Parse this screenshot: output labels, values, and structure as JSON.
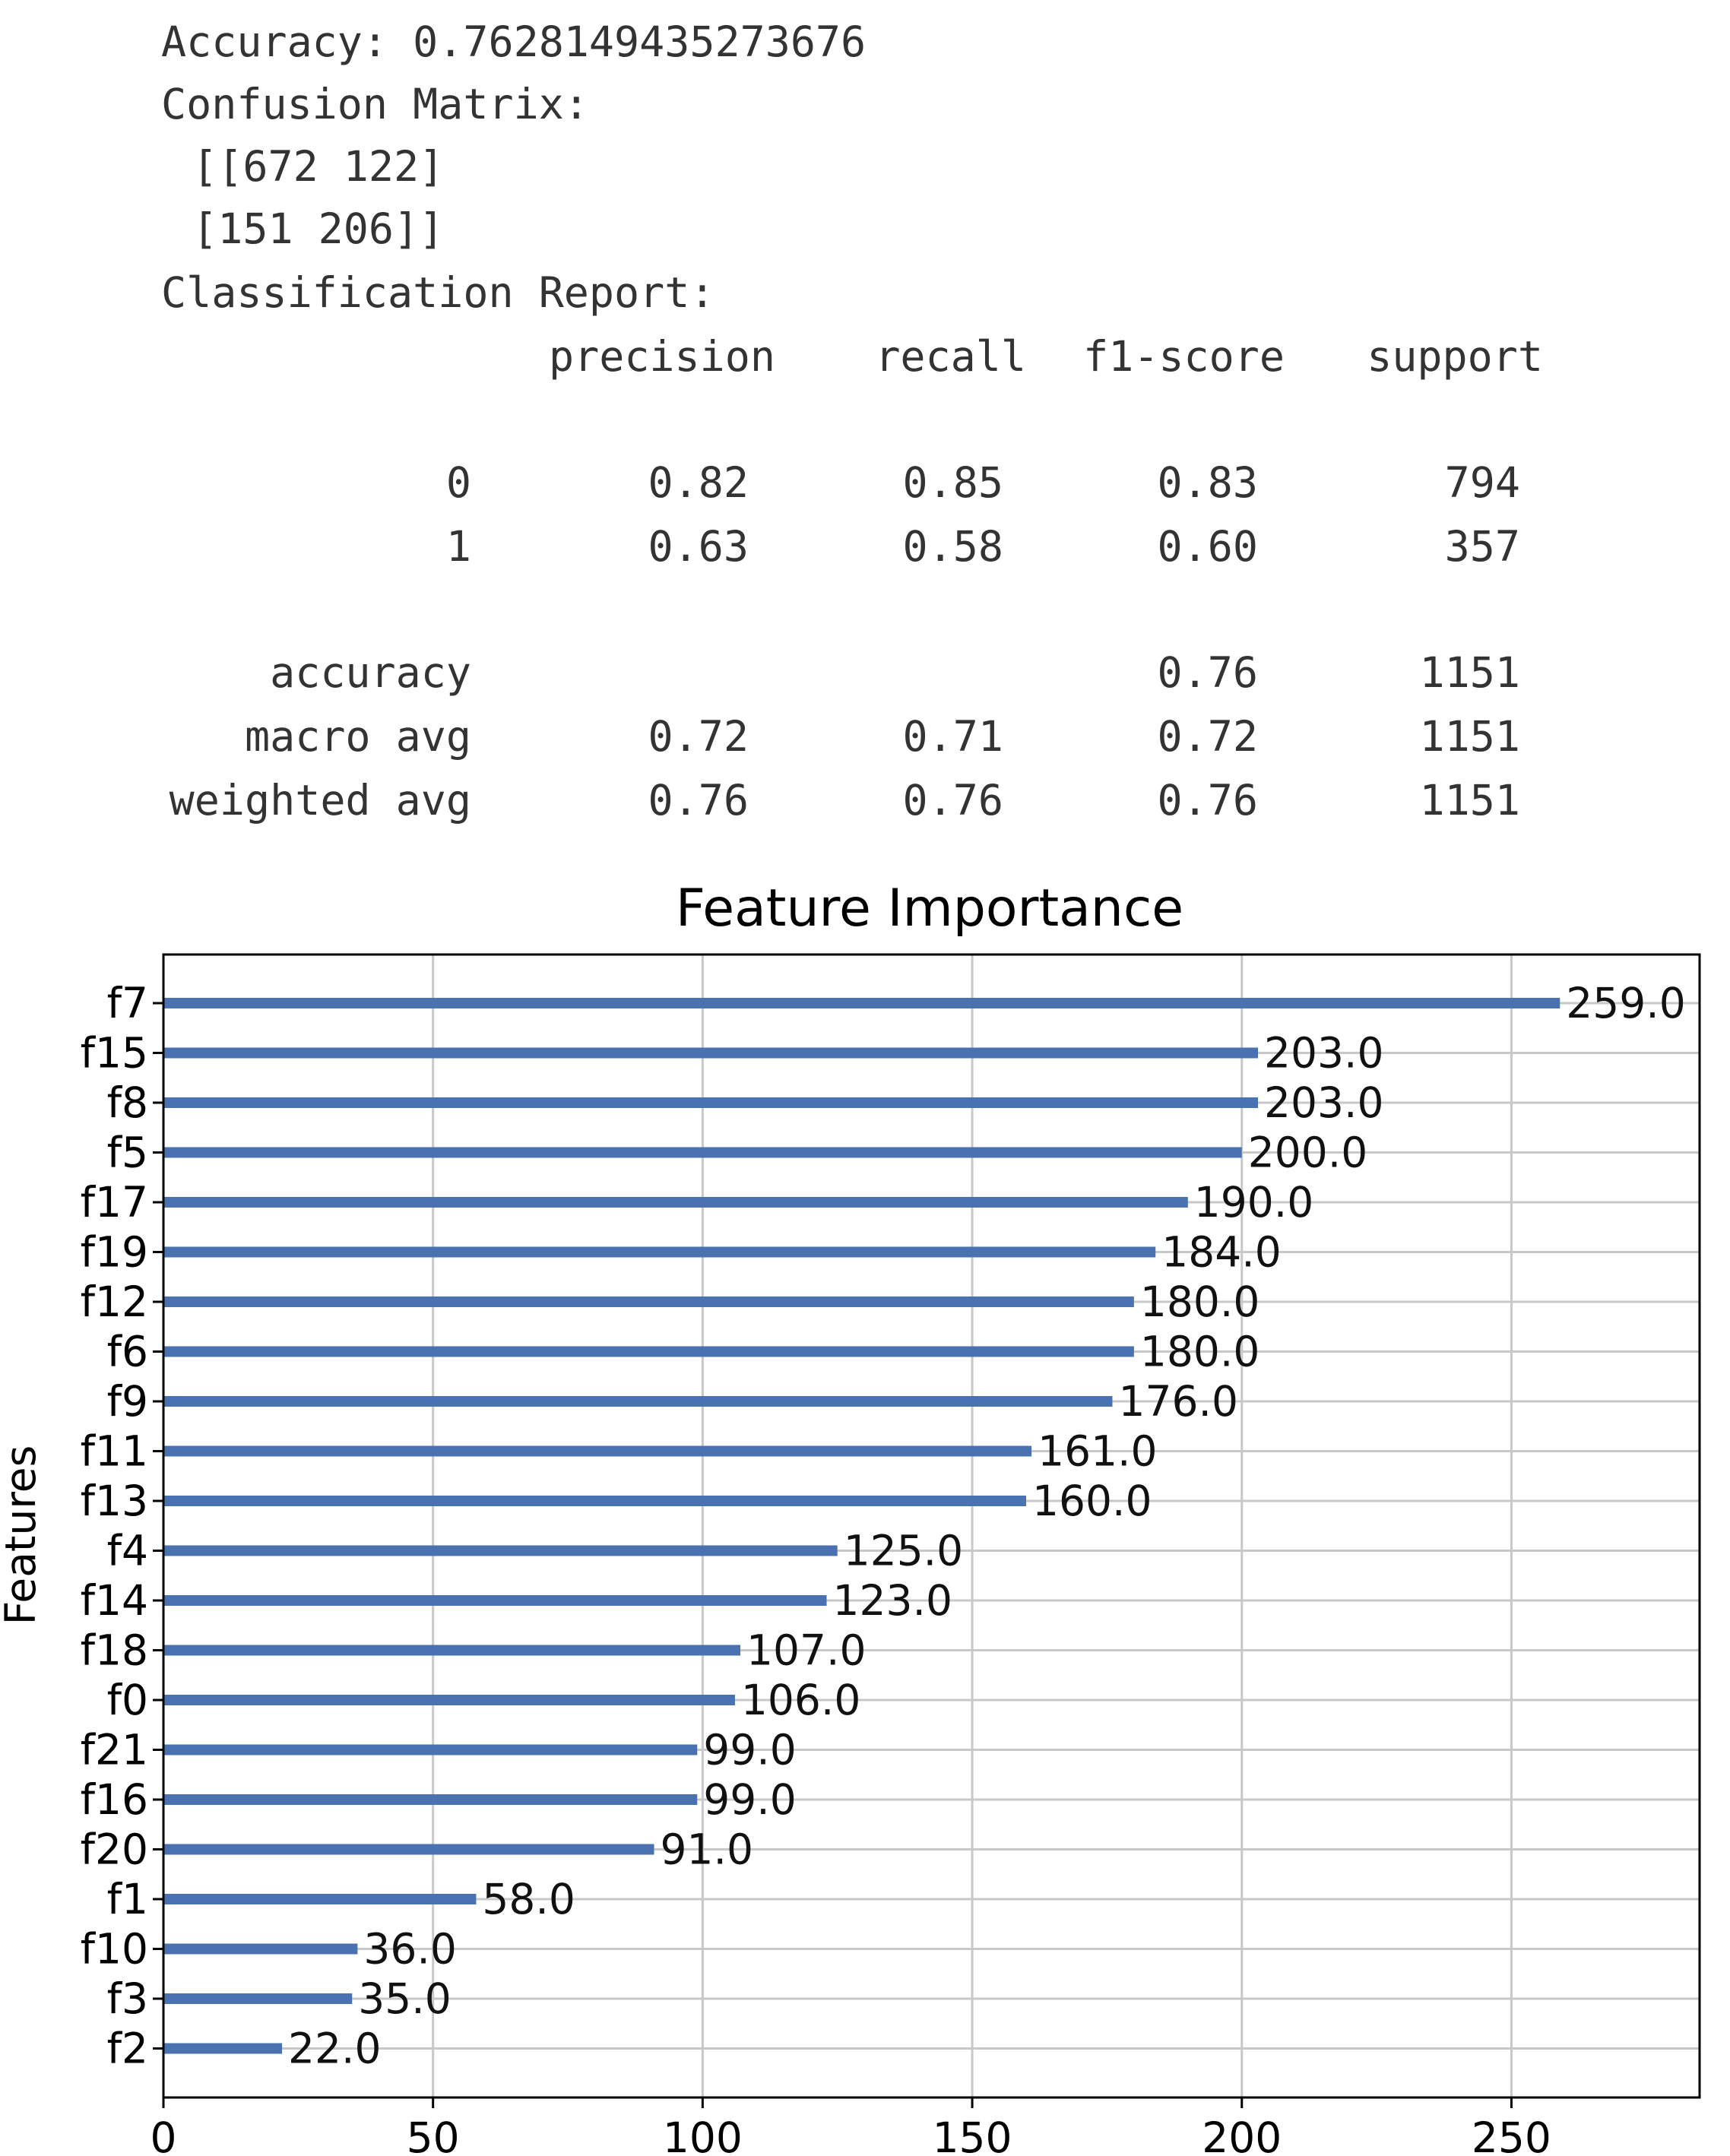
{
  "report": {
    "accuracy_line": "Accuracy: 0.7628149435273676",
    "confusion_title": "Confusion Matrix:",
    "confusion_rows": [
      " [[672 122]",
      " [151 206]]"
    ],
    "classification_title": "Classification Report:",
    "headers": [
      "precision",
      "recall",
      "f1-score",
      "support"
    ],
    "rows": [
      {
        "label": "0",
        "precision": "0.82",
        "recall": "0.85",
        "f1": "0.83",
        "support": "794"
      },
      {
        "label": "1",
        "precision": "0.63",
        "recall": "0.58",
        "f1": "0.60",
        "support": "357"
      },
      {
        "label": "accuracy",
        "precision": "",
        "recall": "",
        "f1": "0.76",
        "support": "1151"
      },
      {
        "label": "macro avg",
        "precision": "0.72",
        "recall": "0.71",
        "f1": "0.72",
        "support": "1151"
      },
      {
        "label": "weighted avg",
        "precision": "0.76",
        "recall": "0.76",
        "f1": "0.76",
        "support": "1151"
      }
    ]
  },
  "chart_data": {
    "type": "bar",
    "orientation": "horizontal",
    "title": "Feature Importance",
    "xlabel": "",
    "ylabel": "Features",
    "categories": [
      "f7",
      "f15",
      "f8",
      "f5",
      "f17",
      "f19",
      "f12",
      "f6",
      "f9",
      "f11",
      "f13",
      "f4",
      "f14",
      "f18",
      "f0",
      "f21",
      "f16",
      "f20",
      "f1",
      "f10",
      "f3",
      "f2"
    ],
    "values": [
      259.0,
      203.0,
      203.0,
      200.0,
      190.0,
      184.0,
      180.0,
      180.0,
      176.0,
      161.0,
      160.0,
      125.0,
      123.0,
      107.0,
      106.0,
      99.0,
      99.0,
      91.0,
      58.0,
      36.0,
      35.0,
      22.0
    ],
    "value_labels": [
      "259.0",
      "203.0",
      "203.0",
      "200.0",
      "190.0",
      "184.0",
      "180.0",
      "180.0",
      "176.0",
      "161.0",
      "160.0",
      "125.0",
      "123.0",
      "107.0",
      "106.0",
      "99.0",
      "99.0",
      "91.0",
      "58.0",
      "36.0",
      "35.0",
      "22.0"
    ],
    "xticks": [
      0,
      50,
      100,
      150,
      200,
      250
    ],
    "xlim": [
      0,
      284.9
    ],
    "grid": true,
    "bar_color": "#4a72b0"
  }
}
